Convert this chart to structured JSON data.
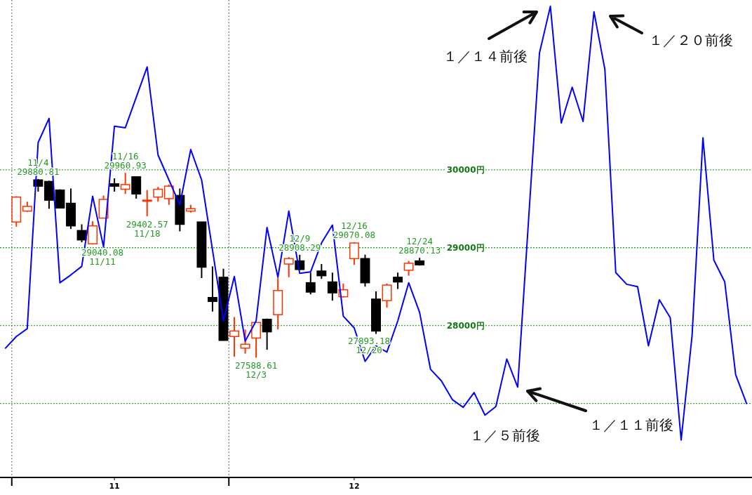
{
  "chart_data": {
    "type": "candlestick",
    "categories": [
      null,
      null,
      null,
      null,
      null,
      null,
      null,
      null,
      null,
      null,
      "11",
      null,
      null,
      null,
      null,
      null,
      null,
      null,
      null,
      null,
      null,
      null,
      null,
      null,
      null,
      null,
      null,
      null,
      null,
      null,
      null,
      null,
      "12",
      null,
      null,
      null,
      null,
      null,
      null,
      null,
      null,
      null,
      null,
      null,
      null,
      null,
      null,
      null,
      null,
      null,
      null,
      null,
      null,
      null,
      null,
      null,
      null,
      null,
      null,
      null,
      null,
      null,
      null,
      null,
      null,
      null,
      null,
      null,
      null
    ],
    "ylim": [
      26050,
      32180
    ],
    "yticks": [
      {
        "value": 27000,
        "label": null
      },
      {
        "value": 28000,
        "label": "28000円"
      },
      {
        "value": 29000,
        "label": "29000円"
      },
      {
        "value": 30000,
        "label": "30000円"
      }
    ],
    "grid": "y",
    "series": [
      {
        "type": "line",
        "color": "#0000ff",
        "values": [
          27710,
          27860,
          27960,
          30350,
          30660,
          28550,
          28650,
          28760,
          29660,
          29010,
          30560,
          30540,
          30930,
          31320,
          30190,
          29870,
          29550,
          30260,
          29870,
          28970,
          28060,
          28630,
          27800,
          28060,
          29260,
          28620,
          29470,
          28670,
          28690,
          29060,
          29290,
          28120,
          27970,
          27540,
          27740,
          27660,
          28060,
          28550,
          28170,
          27440,
          27290,
          27050,
          26950,
          27140,
          26850,
          26960,
          27570,
          27210,
          29360,
          31500,
          32100,
          30600,
          31060,
          30620,
          32030,
          31290,
          28680,
          28530,
          28500,
          27740,
          28330,
          28100,
          26530,
          27870,
          30410,
          28840,
          28560,
          27370,
          27000
        ]
      },
      {
        "ohlc": [
          null,
          [
            29330,
            29660,
            29270,
            29650
          ],
          [
            29470,
            29590,
            29460,
            29530
          ],
          [
            29870,
            29880.81,
            29720,
            29790
          ],
          [
            29850,
            29860,
            29500,
            29610
          ],
          [
            29740,
            29750,
            29510,
            29510
          ],
          [
            29570,
            29760,
            29240,
            29280
          ],
          [
            29220,
            29300,
            29070,
            29100
          ],
          [
            29050,
            29340,
            29040.08,
            29280
          ],
          [
            29380,
            29670,
            29380,
            29620
          ],
          [
            29820,
            29890,
            29720,
            29790
          ],
          [
            29750,
            29960.93,
            29690,
            29810
          ],
          [
            29910,
            29910,
            29630,
            29690
          ],
          [
            29600,
            29740,
            29402.57,
            29610
          ],
          [
            29650,
            29780,
            29590,
            29750
          ],
          [
            29630,
            29810,
            29550,
            29790
          ],
          [
            29670,
            29760,
            29210,
            29300
          ],
          [
            29470,
            29550,
            29450,
            29500
          ],
          [
            29330,
            29330,
            28610,
            28750
          ],
          [
            28360,
            28760,
            28180,
            28310
          ],
          [
            28620,
            28730,
            27810,
            27810
          ],
          [
            27860,
            28110,
            27600,
            27930
          ],
          [
            27710,
            27950,
            27640,
            27760
          ],
          [
            27840,
            28040,
            27588.61,
            28040
          ],
          [
            28080,
            28090,
            27690,
            27920
          ],
          [
            28140,
            28610,
            27950,
            28450
          ],
          [
            28790,
            28880,
            28620,
            28860
          ],
          [
            28830,
            28908.29,
            28710,
            28720
          ],
          [
            28550,
            28680,
            28400,
            28430
          ],
          [
            28700,
            28790,
            28600,
            28640
          ],
          [
            28560,
            28680,
            28320,
            28420
          ],
          [
            28370,
            28540,
            28360,
            28460
          ],
          [
            28860,
            29070.08,
            28780,
            29060
          ],
          [
            28860,
            28910,
            28500,
            28550
          ],
          [
            28340,
            28440,
            27893.18,
            27930
          ],
          [
            28320,
            28540,
            28230,
            28520
          ],
          [
            28620,
            28680,
            28470,
            28560
          ],
          [
            28710,
            28830,
            28640,
            28800
          ],
          [
            28830,
            28870.13,
            28770,
            28780
          ],
          null,
          null,
          null,
          null,
          null,
          null,
          null,
          null,
          null,
          null,
          null,
          null,
          null,
          null,
          null,
          null,
          null,
          null,
          null,
          null,
          null,
          null,
          null,
          null,
          null,
          null,
          null,
          null,
          null,
          null
        ],
        "colors": [
          null,
          "#ff3300",
          "#ff3300",
          "#000000",
          "#000000",
          "#000000",
          "#000000",
          "#000000",
          "#ff3300",
          "#ff3300",
          "#000000",
          "#ff3300",
          "#000000",
          "#ff3300",
          "#ff3300",
          "#ff3300",
          "#000000",
          "#ff3300",
          "#000000",
          "#000000",
          "#000000",
          "#ff3300",
          "#ff3300",
          "#ff3300",
          "#000000",
          "#ff3300",
          "#ff3300",
          "#000000",
          "#000000",
          "#000000",
          "#000000",
          "#ff3300",
          "#ff3300",
          "#000000",
          "#000000",
          "#ff3300",
          "#000000",
          "#ff3300",
          "#000000",
          null,
          null,
          null,
          null,
          null,
          null,
          null,
          null,
          null,
          null,
          null,
          null,
          null,
          null,
          null,
          null,
          null,
          null,
          null,
          null,
          null,
          null,
          null,
          null,
          null,
          null,
          null,
          null,
          null,
          null
        ]
      }
    ],
    "annotations": [
      {
        "text": "11/4\n29880.81",
        "y": 29880.81
      },
      {
        "text": "29040.08\n11/11",
        "y": 29040.08
      },
      {
        "text": "11/16\n29960.93",
        "y": 29960.93
      },
      {
        "text": "29402.57\n11/18",
        "y": 29402.57
      },
      {
        "text": "27588.61\n12/3",
        "y": 27588.61
      },
      {
        "text": "12/9\n28908.29",
        "y": 28908.29
      },
      {
        "text": "12/16\n29070.08",
        "y": 29070.08
      },
      {
        "text": "12/24\n28870.13",
        "y": 28870.13
      },
      "１／１４前後",
      "１／２０前後",
      "１／５前後",
      "１／１１前後",
      "27893.18\n12/20"
    ]
  }
}
